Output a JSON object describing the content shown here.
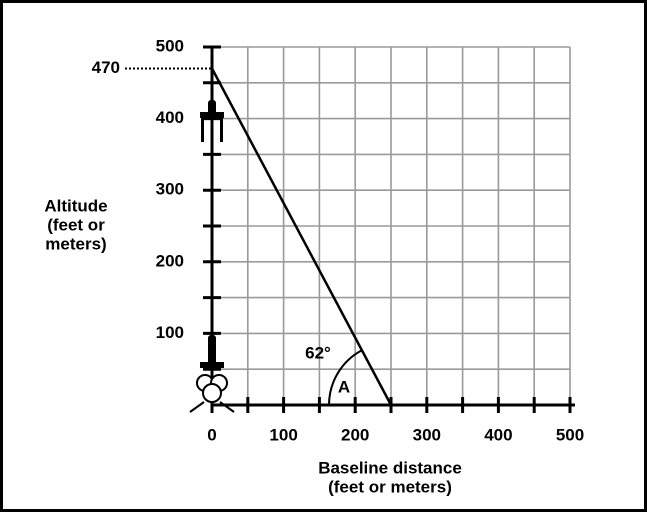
{
  "chart_data": {
    "type": "line",
    "x": [
      0,
      250
    ],
    "series": [
      {
        "values": [
          470,
          0
        ],
        "color": "#000000"
      }
    ],
    "xlim": [
      0,
      500
    ],
    "ylim": [
      0,
      500
    ],
    "xticks": [
      0,
      100,
      200,
      300,
      400,
      500
    ],
    "yticks": [
      100,
      200,
      300,
      400,
      500
    ],
    "minor_xticks": [
      50,
      150,
      250,
      350,
      450
    ],
    "minor_yticks": [
      0,
      50,
      150,
      250,
      350,
      450
    ],
    "grid": true,
    "xlabel": [
      "Baseline distance",
      "(feet or meters)"
    ],
    "ylabel": [
      "Altitude",
      "(feet or",
      "meters)"
    ],
    "marked_altitude": 470,
    "angle_label": "62°",
    "angle_name": "A"
  }
}
